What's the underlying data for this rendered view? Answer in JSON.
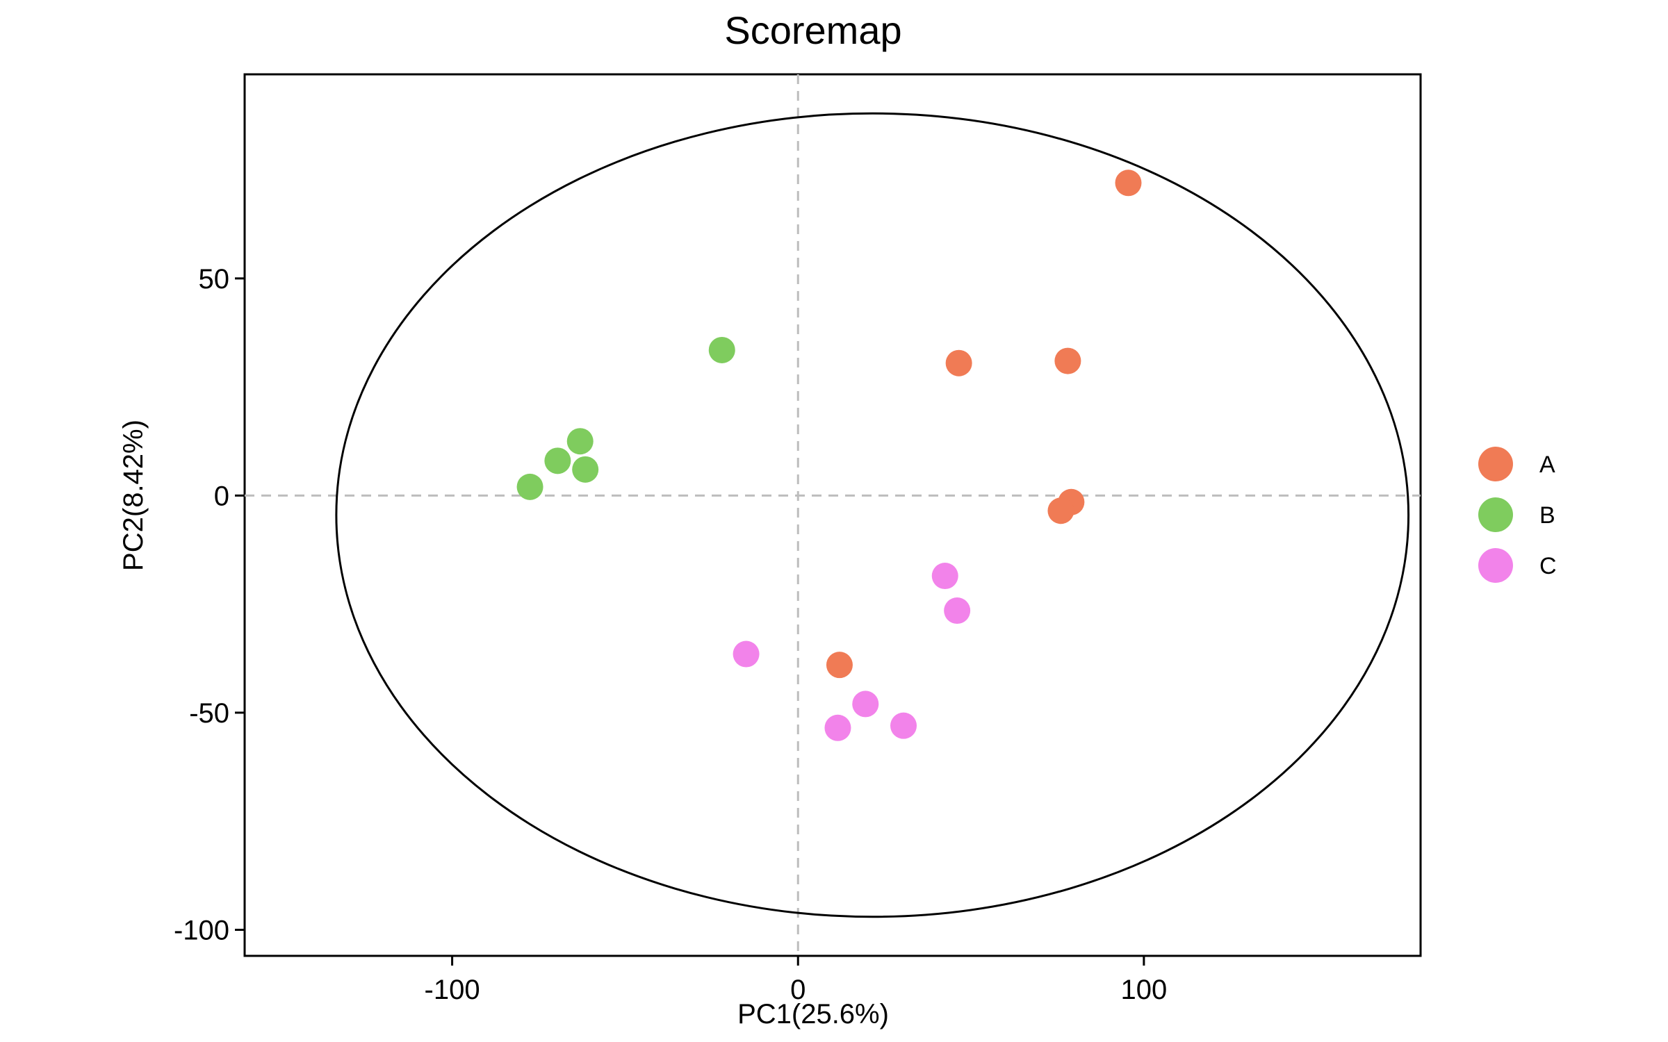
{
  "chart_data": {
    "type": "scatter",
    "title": "Scoremap",
    "xlabel": "PC1(25.6%)",
    "ylabel": "PC2(8.42%)",
    "xlim": [
      -160,
      180
    ],
    "ylim": [
      -106,
      97
    ],
    "xticks": [
      -100,
      0,
      100
    ],
    "yticks": [
      -100,
      -50,
      0,
      50
    ],
    "xtick_labels": [
      "-100",
      "0",
      "100"
    ],
    "ytick_labels": [
      "-100",
      "-50",
      "0",
      "50"
    ],
    "grid": false,
    "reference_lines": {
      "x": 0,
      "y": 0,
      "style": "dashed",
      "color": "#bdbdbd"
    },
    "ellipse": {
      "center": [
        21.5,
        -4.5
      ],
      "radius_x": 155,
      "radius_y": 92.5
    },
    "legend_position": "right",
    "series": [
      {
        "name": "A",
        "color": "#f07b55",
        "points": [
          [
            95.5,
            72
          ],
          [
            46.5,
            30.5
          ],
          [
            78,
            31
          ],
          [
            79,
            -1.5
          ],
          [
            76,
            -3.5
          ],
          [
            12,
            -39
          ]
        ]
      },
      {
        "name": "B",
        "color": "#7fcc5e",
        "points": [
          [
            -22,
            33.5
          ],
          [
            -63,
            12.5
          ],
          [
            -69.5,
            8
          ],
          [
            -61.5,
            6
          ],
          [
            -77.5,
            2
          ]
        ]
      },
      {
        "name": "C",
        "color": "#f283ea",
        "points": [
          [
            42.5,
            -18.5
          ],
          [
            46,
            -26.5
          ],
          [
            -15,
            -36.5
          ],
          [
            19.5,
            -48
          ],
          [
            30.5,
            -53
          ],
          [
            11.5,
            -53.5
          ]
        ]
      }
    ]
  }
}
